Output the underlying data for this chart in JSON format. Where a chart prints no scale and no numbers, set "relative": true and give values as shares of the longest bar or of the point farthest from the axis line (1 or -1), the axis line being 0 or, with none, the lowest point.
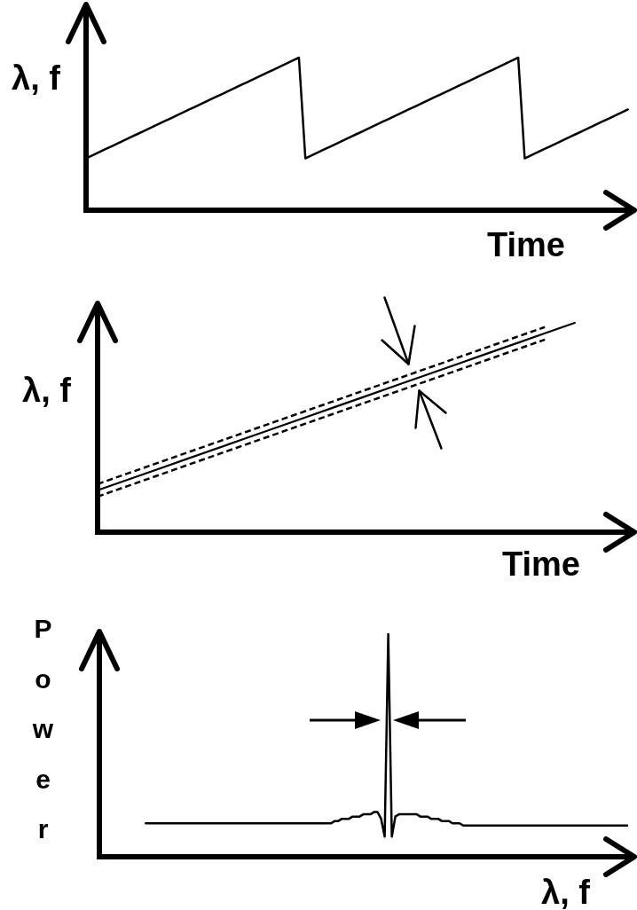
{
  "chart_data": [
    {
      "type": "line",
      "relative": true,
      "xlabel": "Time",
      "ylabel": "λ, f",
      "tick_labels": false,
      "categories": [
        null,
        null,
        null,
        null,
        null,
        null,
        null,
        null,
        null,
        null,
        null,
        null,
        null,
        null,
        null,
        null,
        null,
        null,
        null,
        null,
        null,
        null,
        null,
        null,
        null,
        null,
        null,
        null,
        null,
        null,
        null,
        null,
        null,
        null,
        null,
        null,
        null,
        null,
        null,
        null,
        null,
        null,
        null,
        null,
        null,
        null,
        null,
        null,
        null,
        null,
        null,
        null,
        null,
        null,
        null,
        null,
        null,
        null,
        null,
        null,
        null,
        null,
        null,
        null,
        null,
        null,
        null,
        null,
        null,
        null,
        null,
        null,
        null,
        null,
        null,
        null,
        null,
        null,
        null,
        null,
        null,
        null,
        null,
        null,
        null,
        null
      ],
      "series": [
        {
          "color": "#000000",
          "values": [
            0.34,
            0.36,
            0.38,
            0.4,
            0.42,
            0.44,
            0.46,
            0.48,
            0.5,
            0.52,
            0.54,
            0.56,
            0.58,
            0.6,
            0.62,
            0.64,
            0.66,
            0.68,
            0.7,
            0.72,
            0.74,
            0.76,
            0.78,
            0.8,
            0.82,
            0.84,
            0.86,
            0.88,
            0.9,
            0.92,
            0.94,
            0.96,
            0.98,
            1.0,
            0.34,
            0.36,
            0.38,
            0.4,
            0.42,
            0.44,
            0.46,
            0.48,
            0.5,
            0.52,
            0.54,
            0.56,
            0.58,
            0.6,
            0.62,
            0.64,
            0.66,
            0.68,
            0.7,
            0.72,
            0.74,
            0.76,
            0.78,
            0.8,
            0.82,
            0.84,
            0.86,
            0.88,
            0.9,
            0.92,
            0.94,
            0.96,
            0.98,
            1.0,
            0.34,
            0.36,
            0.38,
            0.4,
            0.42,
            0.44,
            0.46,
            0.48,
            0.5,
            0.52,
            0.54,
            0.56,
            0.58,
            0.6,
            0.62,
            0.64,
            0.66,
            null
          ]
        }
      ]
    },
    {
      "type": "line",
      "relative": true,
      "xlabel": "Time",
      "ylabel": "λ, f",
      "tick_labels": false,
      "categories": [
        null,
        null,
        null,
        null,
        null,
        null,
        null,
        null,
        null,
        null,
        null,
        null,
        null,
        null,
        null,
        null,
        null,
        null,
        null
      ],
      "series": [
        {
          "color": "#000000",
          "values": [
            0.2,
            0.25,
            0.3,
            0.35,
            0.4,
            0.45,
            0.5,
            0.55,
            0.6,
            0.65,
            0.7,
            0.75,
            0.8,
            0.85,
            0.9,
            0.95,
            1.0,
            null,
            null
          ]
        },
        {
          "color": "#000000",
          "line_style": "dashed",
          "values": [
            0.23,
            0.28,
            0.33,
            0.38,
            0.43,
            0.48,
            0.53,
            0.58,
            0.63,
            0.68,
            0.73,
            0.78,
            0.83,
            0.88,
            0.93,
            0.98,
            null,
            null,
            null
          ]
        },
        {
          "color": "#000000",
          "line_style": "dashed",
          "values": [
            0.17,
            0.22,
            0.27,
            0.32,
            0.37,
            0.42,
            0.47,
            0.52,
            0.57,
            0.62,
            0.67,
            0.72,
            0.77,
            0.82,
            0.87,
            0.92,
            null,
            null,
            null
          ]
        }
      ]
    },
    {
      "type": "line",
      "relative": true,
      "xlabel": "λ, f",
      "ylabel": "Power",
      "tick_labels": false,
      "categories": [
        null,
        null,
        null,
        null,
        null,
        null,
        null,
        null,
        null,
        null,
        null,
        null,
        null,
        null,
        null,
        null,
        null,
        null,
        null,
        null,
        null,
        null,
        null,
        null,
        null,
        null,
        null,
        null,
        null,
        null,
        null,
        null,
        null,
        null,
        null,
        null,
        null,
        null,
        null,
        null,
        null,
        null,
        null,
        null,
        null,
        null,
        null,
        null,
        null,
        null,
        null,
        null,
        null,
        null,
        null,
        null,
        null,
        null,
        null,
        null,
        null,
        null,
        null,
        null,
        null,
        null,
        null,
        null,
        null,
        null,
        null,
        null,
        null,
        null,
        null,
        null,
        null,
        null,
        null,
        null,
        null,
        null,
        null,
        null,
        null,
        null,
        null,
        null,
        null,
        null,
        null,
        null,
        null,
        null,
        null,
        null,
        null,
        null,
        null,
        null,
        null,
        null,
        null,
        null,
        null,
        null,
        null,
        null,
        null,
        null,
        null,
        null,
        null,
        null,
        null,
        null,
        null,
        null,
        null,
        null,
        null,
        null,
        null,
        null,
        null,
        null,
        null,
        null,
        null,
        null,
        null,
        null,
        null,
        null,
        null,
        null,
        null,
        null,
        null,
        null,
        null,
        null,
        null,
        null,
        null,
        null,
        null,
        null,
        null,
        null,
        null
      ],
      "series": [
        {
          "color": "#000000",
          "values": [
            null,
            null,
            null,
            null,
            null,
            null,
            null,
            null,
            null,
            null,
            null,
            null,
            null,
            0.15,
            0.15,
            0.15,
            0.15,
            0.15,
            0.15,
            0.15,
            0.15,
            0.15,
            0.15,
            0.15,
            0.15,
            0.15,
            0.15,
            0.15,
            0.15,
            0.15,
            0.15,
            0.15,
            0.15,
            0.15,
            0.15,
            0.15,
            0.15,
            0.15,
            0.15,
            0.15,
            0.15,
            0.15,
            0.15,
            0.15,
            0.15,
            0.15,
            0.15,
            0.15,
            0.15,
            0.15,
            0.15,
            0.15,
            0.15,
            0.15,
            0.15,
            0.15,
            0.15,
            0.15,
            0.15,
            0.15,
            0.15,
            0.15,
            0.15,
            0.15,
            0.15,
            0.15,
            0.16,
            0.16,
            0.17,
            0.17,
            0.17,
            0.18,
            0.18,
            0.18,
            0.19,
            0.19,
            0.19,
            0.2,
            0.2,
            0.17,
            0.09,
            1.0,
            0.09,
            0.18,
            0.19,
            0.19,
            0.19,
            0.19,
            0.19,
            0.19,
            0.18,
            0.18,
            0.18,
            0.17,
            0.17,
            0.17,
            0.16,
            0.16,
            0.16,
            0.15,
            0.15,
            0.15,
            0.14,
            0.14,
            0.14,
            0.14,
            0.14,
            0.14,
            0.14,
            0.14,
            0.14,
            0.14,
            0.14,
            0.14,
            0.14,
            0.14,
            0.14,
            0.14,
            0.14,
            0.14,
            0.14,
            0.14,
            0.14,
            0.14,
            0.14,
            0.14,
            0.14,
            0.14,
            0.14,
            0.14,
            0.14,
            0.14,
            0.14,
            0.14,
            0.14,
            0.14,
            0.14,
            0.14,
            0.14,
            0.14,
            0.14,
            0.14,
            0.14,
            0.14,
            0.14,
            0.14,
            0.14,
            0.14,
            0.14,
            null,
            null
          ]
        }
      ]
    }
  ]
}
